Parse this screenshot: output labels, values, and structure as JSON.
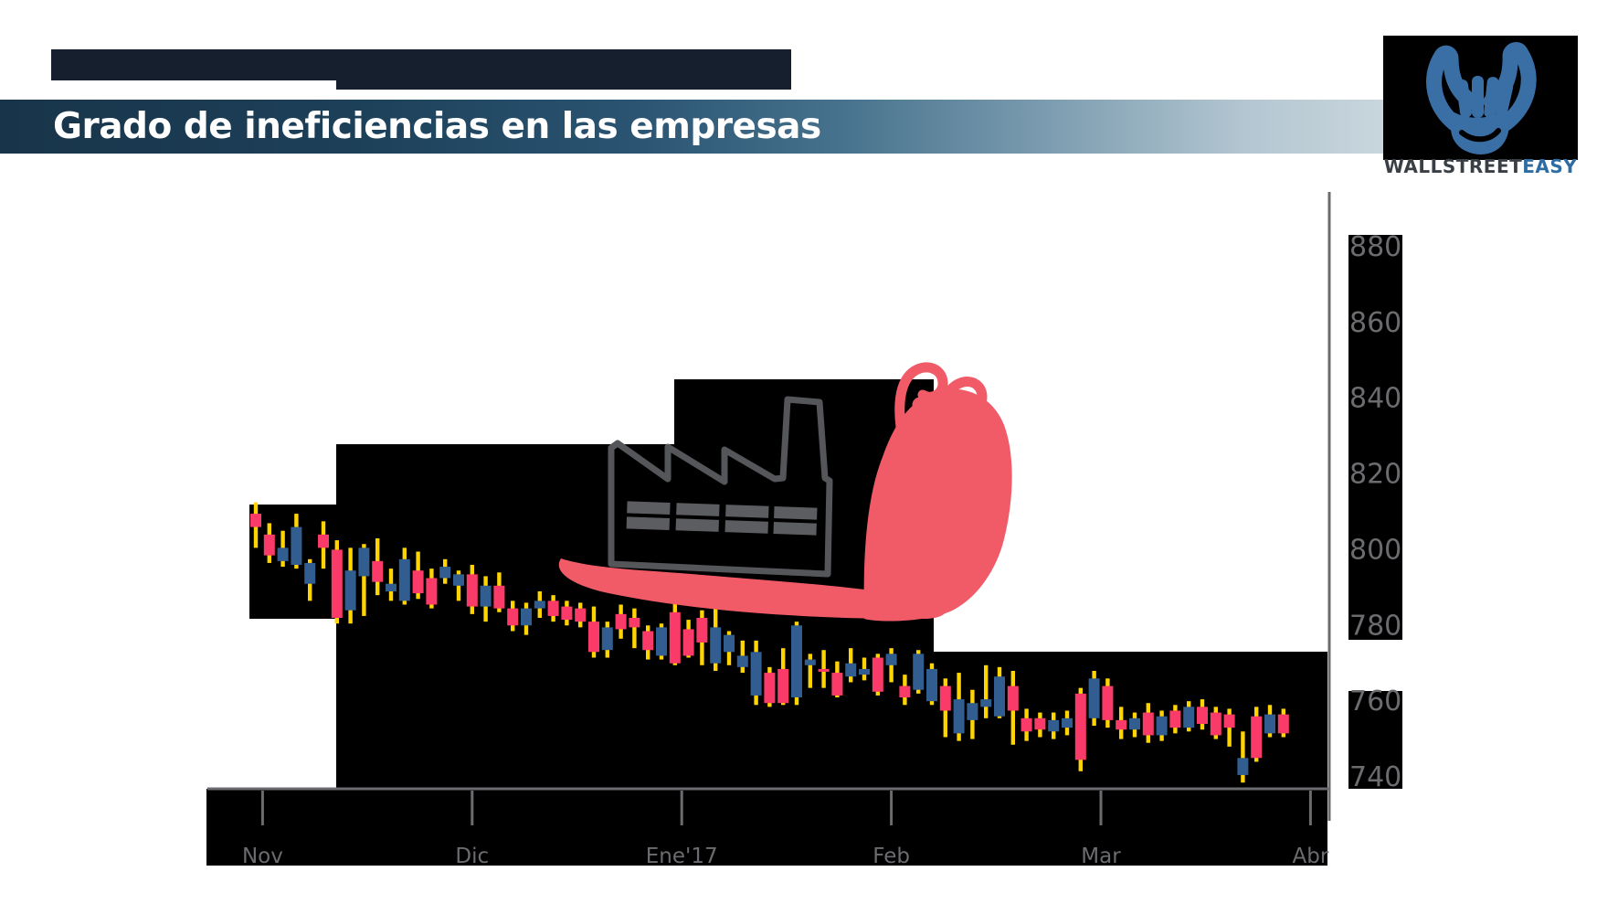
{
  "header": {
    "title": "Grado de ineficiencias en las empresas"
  },
  "logo": {
    "brand": "WALLSTREET",
    "brand_accent": "EASY",
    "icon": "bull-fist-icon"
  },
  "illustration": {
    "name": "snail-carrying-factory",
    "meaning": "slow / inefficient company"
  },
  "theme": {
    "navy_bar": "#151f2e",
    "title_text": "#ffffff",
    "panel_black": "#000000",
    "axis_gray": "#6b6c70",
    "snail_pink": "#f15b68",
    "factory_gray": "#55565a",
    "factory_window_gray": "#5c5d61",
    "logo_blue": "#3a6fa6"
  },
  "chart_data": {
    "type": "candlestick",
    "title": "",
    "xlabel": "",
    "ylabel": "",
    "legend": "none",
    "grid": "off",
    "ylim": [
      738,
      884
    ],
    "y_ticks": [
      880,
      860,
      840,
      820,
      800,
      780,
      760,
      740
    ],
    "x_ticks": [
      {
        "label": "Nov",
        "i": 0.5
      },
      {
        "label": "Dic",
        "i": 16
      },
      {
        "label": "Ene'17",
        "i": 31.5
      },
      {
        "label": "Feb",
        "i": 47
      },
      {
        "label": "Mar",
        "i": 62.5
      },
      {
        "label": "Abr",
        "i": 78
      }
    ],
    "colors": {
      "bull": "#315d90",
      "bear": "#fa3b69",
      "wick": "#ffd400"
    },
    "candles": [
      [
        809.5,
        812.5,
        800.5,
        806
      ],
      [
        804,
        807,
        796.5,
        798.5
      ],
      [
        797,
        805,
        795.5,
        800.5
      ],
      [
        796,
        809.5,
        795,
        806
      ],
      [
        791,
        797.5,
        786.5,
        796.5
      ],
      [
        804,
        807.5,
        795,
        800.5
      ],
      [
        800,
        802.5,
        780.5,
        782
      ],
      [
        784,
        800.5,
        780.5,
        794.5
      ],
      [
        793,
        801.5,
        782.5,
        800.5
      ],
      [
        797,
        803,
        788,
        791.5
      ],
      [
        789,
        795,
        786.5,
        791
      ],
      [
        786.5,
        800.5,
        785.5,
        797.5
      ],
      [
        794.5,
        799.5,
        787,
        788.5
      ],
      [
        792.5,
        795,
        784.5,
        785.5
      ],
      [
        792.5,
        797.5,
        791,
        795.5
      ],
      [
        790.5,
        794.5,
        786.5,
        793.5
      ],
      [
        793.5,
        796,
        783,
        785
      ],
      [
        785,
        793,
        781,
        790.5
      ],
      [
        790.5,
        794,
        783.5,
        784.5
      ],
      [
        784.5,
        786.5,
        778.5,
        780
      ],
      [
        780,
        786,
        777.5,
        784.5
      ],
      [
        784.5,
        789,
        782,
        786.5
      ],
      [
        786.5,
        788,
        781,
        782.5
      ],
      [
        785,
        786.5,
        780,
        781.5
      ],
      [
        784.5,
        786,
        779.5,
        781
      ],
      [
        781,
        785,
        771.5,
        773
      ],
      [
        773.5,
        781,
        771.5,
        779.5
      ],
      [
        783,
        785.5,
        776.5,
        779
      ],
      [
        782,
        784.5,
        774,
        779.5
      ],
      [
        778.5,
        780,
        771,
        773.5
      ],
      [
        772,
        780.5,
        771,
        779.5
      ],
      [
        783.5,
        786.5,
        769.5,
        770
      ],
      [
        779,
        781.5,
        771.5,
        772
      ],
      [
        782,
        784,
        769.5,
        775.5
      ],
      [
        770,
        785.5,
        768,
        779.5
      ],
      [
        773,
        778.5,
        769.5,
        777.5
      ],
      [
        769,
        776,
        767.5,
        772
      ],
      [
        761.5,
        776,
        759,
        773
      ],
      [
        767.5,
        769,
        758.5,
        759.5
      ],
      [
        768.5,
        774,
        759,
        759.5
      ],
      [
        761,
        781,
        759,
        780
      ],
      [
        769.5,
        772.5,
        763.5,
        771
      ],
      [
        768.5,
        773.5,
        763.5,
        768
      ],
      [
        767.5,
        770.5,
        761,
        761.5
      ],
      [
        766.5,
        774,
        765,
        770
      ],
      [
        767,
        771.5,
        765.5,
        768.5
      ],
      [
        771.5,
        772.5,
        761.5,
        762.5
      ],
      [
        769.5,
        774,
        765,
        772.5
      ],
      [
        764,
        767,
        759,
        761
      ],
      [
        763,
        773.5,
        762,
        772.5
      ],
      [
        760,
        770,
        759,
        768.5
      ],
      [
        764,
        766,
        750.5,
        757.5
      ],
      [
        751.5,
        767.5,
        749.5,
        760.5
      ],
      [
        755,
        763,
        750,
        759.5
      ],
      [
        758.5,
        769.5,
        755.5,
        760.5
      ],
      [
        756,
        769,
        755.5,
        766.5
      ],
      [
        764,
        768,
        748.5,
        757.5
      ],
      [
        755.5,
        758,
        749.5,
        752
      ],
      [
        755.5,
        757,
        750.5,
        752.5
      ],
      [
        752,
        757,
        750,
        755
      ],
      [
        753,
        757.5,
        751,
        755.5
      ],
      [
        762,
        763.5,
        741.5,
        744.5
      ],
      [
        755.5,
        768,
        753.5,
        766
      ],
      [
        764,
        766,
        753,
        755
      ],
      [
        755,
        758.5,
        750,
        752.5
      ],
      [
        752.5,
        757,
        750.5,
        755.5
      ],
      [
        757,
        759.5,
        749,
        751
      ],
      [
        751,
        757.5,
        749.5,
        756
      ],
      [
        757.5,
        759,
        751.5,
        753
      ],
      [
        753,
        760,
        752,
        758.5
      ],
      [
        758.5,
        760.5,
        752.5,
        754
      ],
      [
        757,
        758.5,
        750,
        751
      ],
      [
        756.5,
        758,
        748,
        753
      ],
      [
        740.5,
        752,
        738.5,
        745
      ],
      [
        756,
        758.5,
        744,
        745
      ],
      [
        751.5,
        759,
        750.5,
        756.5
      ],
      [
        756.5,
        758,
        750.5,
        751.5
      ]
    ]
  }
}
